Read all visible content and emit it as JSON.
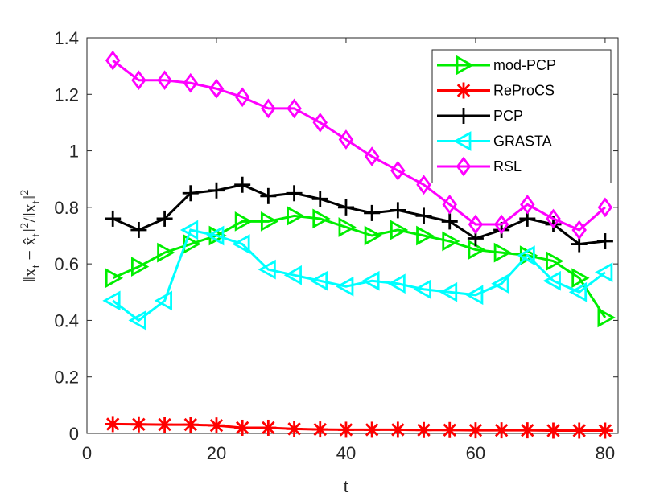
{
  "chart_data": {
    "type": "line",
    "title": "",
    "xlabel": "t",
    "ylabel": "||x_t − x̂_t||² / ||x_t||²",
    "xlim": [
      0,
      82
    ],
    "ylim": [
      0,
      1.4
    ],
    "xticks": [
      0,
      20,
      40,
      60,
      80
    ],
    "xtick_labels": [
      "0",
      "20",
      "40",
      "60",
      "80"
    ],
    "yticks": [
      0,
      0.2,
      0.4,
      0.6,
      0.8,
      1,
      1.2,
      1.4
    ],
    "ytick_labels": [
      "0",
      "0.2",
      "0.4",
      "0.6",
      "0.8",
      "1",
      "1.2",
      "1.4"
    ],
    "grid": false,
    "legend_position": "top-right",
    "x": [
      4,
      8,
      12,
      16,
      20,
      24,
      28,
      32,
      36,
      40,
      44,
      48,
      52,
      56,
      60,
      64,
      68,
      72,
      76,
      80
    ],
    "series": [
      {
        "name": "mod-PCP",
        "color": "#00ee00",
        "marker": "triangle-right",
        "values": [
          0.55,
          0.59,
          0.64,
          0.67,
          0.7,
          0.75,
          0.75,
          0.77,
          0.76,
          0.73,
          0.7,
          0.72,
          0.7,
          0.68,
          0.65,
          0.64,
          0.63,
          0.61,
          0.55,
          0.41
        ]
      },
      {
        "name": "ReProCS",
        "color": "#ff0000",
        "marker": "asterisk",
        "values": [
          0.033,
          0.032,
          0.031,
          0.031,
          0.028,
          0.02,
          0.02,
          0.016,
          0.014,
          0.013,
          0.013,
          0.013,
          0.012,
          0.012,
          0.011,
          0.011,
          0.011,
          0.01,
          0.01,
          0.01
        ]
      },
      {
        "name": "PCP",
        "color": "#000000",
        "marker": "plus",
        "values": [
          0.76,
          0.72,
          0.76,
          0.85,
          0.86,
          0.88,
          0.84,
          0.85,
          0.83,
          0.8,
          0.78,
          0.79,
          0.77,
          0.75,
          0.69,
          0.72,
          0.76,
          0.74,
          0.67,
          0.68
        ]
      },
      {
        "name": "GRASTA",
        "color": "#00ffff",
        "marker": "triangle-left",
        "values": [
          0.47,
          0.4,
          0.47,
          0.72,
          0.7,
          0.67,
          0.58,
          0.56,
          0.54,
          0.52,
          0.54,
          0.53,
          0.51,
          0.5,
          0.49,
          0.53,
          0.63,
          0.54,
          0.5,
          0.57
        ]
      },
      {
        "name": "RSL",
        "color": "#ff00ff",
        "marker": "diamond",
        "values": [
          1.32,
          1.25,
          1.25,
          1.24,
          1.22,
          1.19,
          1.15,
          1.15,
          1.1,
          1.04,
          0.98,
          0.93,
          0.88,
          0.81,
          0.74,
          0.74,
          0.81,
          0.76,
          0.72,
          0.8
        ]
      }
    ]
  }
}
